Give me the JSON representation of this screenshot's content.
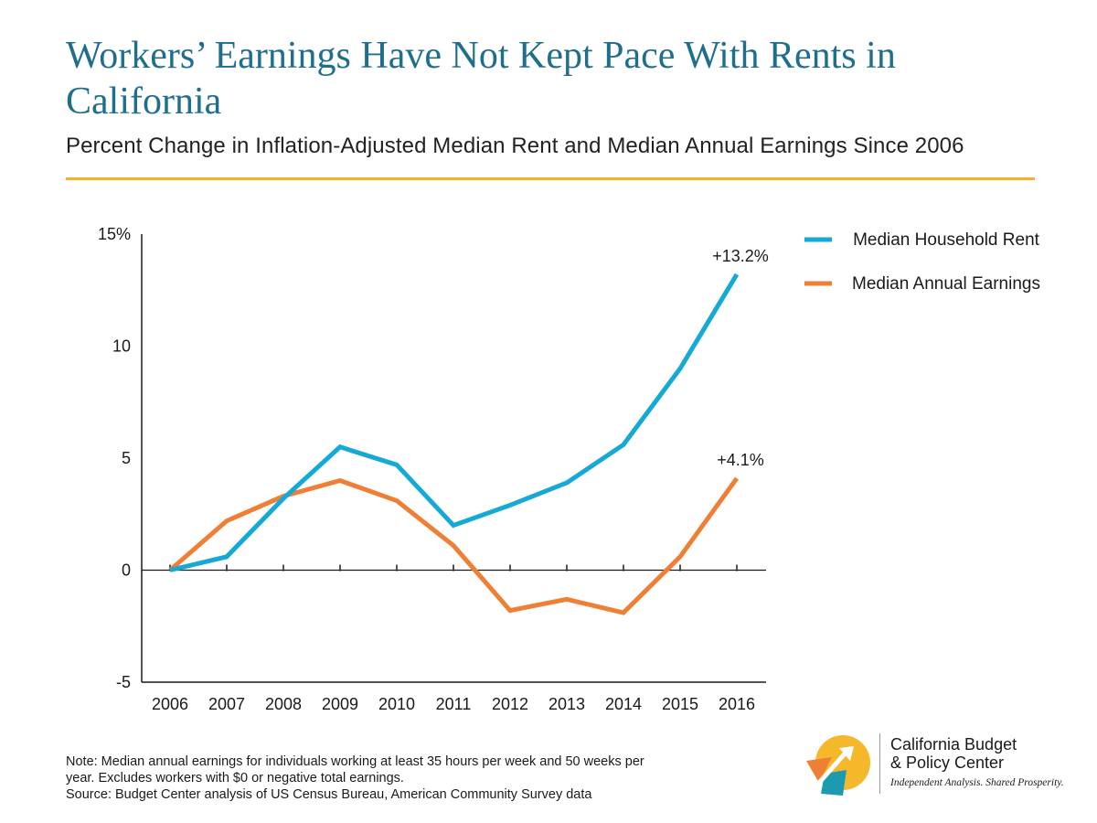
{
  "title": "Workers’ Earnings Have Not Kept Pace With Rents in California",
  "subtitle": "Percent Change in Inflation-Adjusted Median Rent and Median Annual Earnings Since 2006",
  "colors": {
    "accent_rule": "#f2b32a",
    "title": "#1f6e8c",
    "rent": "#15aad6",
    "earnings": "#f07f36"
  },
  "chart_data": {
    "type": "line",
    "x": [
      "2006",
      "2007",
      "2008",
      "2009",
      "2010",
      "2011",
      "2012",
      "2013",
      "2014",
      "2015",
      "2016"
    ],
    "series": [
      {
        "name": "Median Household Rent",
        "color": "#15aad6",
        "values": [
          0,
          0.6,
          3.2,
          5.5,
          4.7,
          2.0,
          2.9,
          3.9,
          5.6,
          9.0,
          13.2
        ]
      },
      {
        "name": "Median Annual Earnings",
        "color": "#f07f36",
        "values": [
          0,
          2.2,
          3.3,
          4.0,
          3.1,
          1.1,
          -1.8,
          -1.3,
          -1.9,
          0.6,
          4.1
        ]
      }
    ],
    "ylim": [
      -5,
      15
    ],
    "yticks": [
      -5,
      0,
      5,
      10,
      15
    ],
    "ytick_labels": [
      "-5",
      "0",
      "5",
      "10",
      "15%"
    ],
    "end_labels": [
      "+13.2%",
      "+4.1%"
    ],
    "legend_position": "top-right",
    "grid": false
  },
  "notes": {
    "note_line1": "Note: Median annual earnings for individuals working at least 35 hours per week and 50 weeks per",
    "note_line2": "year. Excludes workers with $0 or negative total earnings.",
    "source": "Source: Budget Center analysis of US Census Bureau, American Community Survey data"
  },
  "logo": {
    "name_line1": "California Budget",
    "name_line2": "& Policy Center",
    "tagline": "Independent Analysis. Shared Prosperity."
  }
}
